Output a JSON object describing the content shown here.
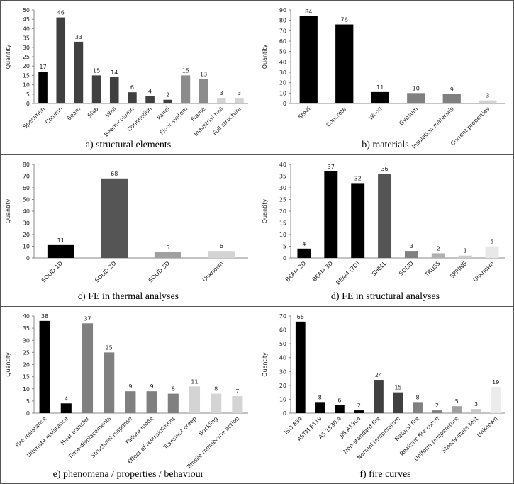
{
  "chart_data": [
    {
      "type": "bar",
      "caption": "a) structural elements",
      "y_label": "Quantity",
      "categories": [
        "Specimen",
        "Column",
        "Beam",
        "Slab",
        "Wall",
        "Beam-column",
        "Connection",
        "Panel",
        "Floor system",
        "Frame",
        "Industrial hall",
        "Full structure"
      ],
      "values": [
        17,
        46,
        33,
        15,
        14,
        6,
        4,
        2,
        15,
        13,
        3,
        3
      ],
      "colors": [
        "#000000",
        "#404040",
        "#404040",
        "#404040",
        "#404040",
        "#404040",
        "#404040",
        "#404040",
        "#8c8c8c",
        "#8c8c8c",
        "#d4d4d4",
        "#d4d4d4"
      ],
      "ylim": [
        0,
        50
      ],
      "yticks": [
        0,
        5,
        10,
        15,
        20,
        25,
        30,
        35,
        40,
        45,
        50
      ]
    },
    {
      "type": "bar",
      "caption": "b) materials",
      "y_label": "Quantity",
      "categories": [
        "Steel",
        "Concrete",
        "Wood",
        "Gypsum",
        "Insulation materials",
        "Current properties"
      ],
      "values": [
        84,
        76,
        11,
        10,
        9,
        3
      ],
      "colors": [
        "#000000",
        "#000000",
        "#000000",
        "#808080",
        "#808080",
        "#d4d4d4"
      ],
      "ylim": [
        0,
        90
      ],
      "yticks": [
        0,
        10,
        20,
        30,
        40,
        50,
        60,
        70,
        80,
        90
      ]
    },
    {
      "type": "bar",
      "caption": "c) FE in thermal analyses",
      "y_label": "Quantity",
      "categories": [
        "SOLID 1D",
        "SOLID 2D",
        "SOLID 3D",
        "Unknown"
      ],
      "values": [
        11,
        68,
        5,
        6
      ],
      "colors": [
        "#000000",
        "#555555",
        "#a0a0a0",
        "#d4d4d4"
      ],
      "ylim": [
        0,
        80
      ],
      "yticks": [
        0,
        10,
        20,
        30,
        40,
        50,
        60,
        70,
        80
      ]
    },
    {
      "type": "bar",
      "caption": "d) FE in structural analyses",
      "y_label": "Quantity",
      "categories": [
        "BEAM 2D",
        "BEAM 3D",
        "BEAM (7D)",
        "SHELL",
        "SOLID",
        "TRUSS",
        "SPRING",
        "Unknown"
      ],
      "values": [
        4,
        37,
        32,
        36,
        3,
        2,
        1,
        5
      ],
      "colors": [
        "#000000",
        "#000000",
        "#000000",
        "#555555",
        "#808080",
        "#b0b0b0",
        "#cccccc",
        "#e8e8e8"
      ],
      "ylim": [
        0,
        40
      ],
      "yticks": [
        0,
        5,
        10,
        15,
        20,
        25,
        30,
        35,
        40
      ]
    },
    {
      "type": "bar",
      "caption": "e) phenomena / properties / behaviour",
      "y_label": "Quantity",
      "categories": [
        "Fire resistance",
        "Ultimate resistance",
        "Heat transfer",
        "Time-displacements",
        "Structural response",
        "Failure mode",
        "Effect of restraintment",
        "Transient creep",
        "Buckling",
        "Tensile membrane action"
      ],
      "values": [
        38,
        4,
        37,
        25,
        9,
        9,
        8,
        11,
        8,
        7
      ],
      "colors": [
        "#000000",
        "#000000",
        "#808080",
        "#808080",
        "#808080",
        "#808080",
        "#808080",
        "#d4d4d4",
        "#d4d4d4",
        "#d4d4d4"
      ],
      "ylim": [
        0,
        40
      ],
      "yticks": [
        0,
        5,
        10,
        15,
        20,
        25,
        30,
        35,
        40
      ]
    },
    {
      "type": "bar",
      "caption": "f) fire curves",
      "y_label": "Quantity",
      "categories": [
        "ISO 834",
        "ASTM E119",
        "AS 1530.4",
        "JIS A1304",
        "Non-standard fire",
        "Normal temperature",
        "Natural fire",
        "Realistic fire curve",
        "Uniform temperature",
        "Steady-state test",
        "Unknown"
      ],
      "values": [
        66,
        8,
        6,
        2,
        24,
        15,
        8,
        2,
        5,
        3,
        19
      ],
      "colors": [
        "#000000",
        "#000000",
        "#000000",
        "#000000",
        "#404040",
        "#404040",
        "#808080",
        "#808080",
        "#a0a0a0",
        "#c8c8c8",
        "#ececec"
      ],
      "ylim": [
        0,
        70
      ],
      "yticks": [
        0,
        10,
        20,
        30,
        40,
        50,
        60,
        70
      ]
    }
  ]
}
